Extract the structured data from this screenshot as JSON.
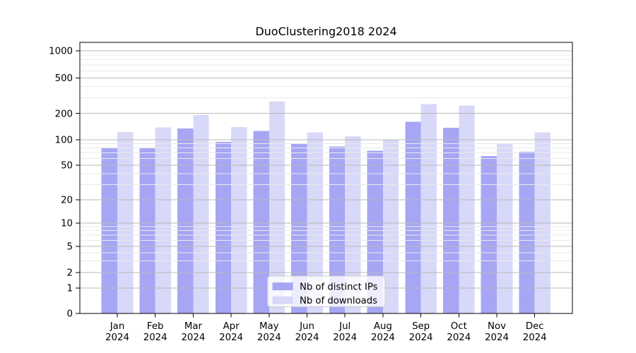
{
  "figure": {
    "background": "#ffffff"
  },
  "chart_data": {
    "type": "bar",
    "title": "DuoClustering2018 2024",
    "categories": [
      "Jan 2024",
      "Feb 2024",
      "Mar 2024",
      "Apr 2024",
      "May 2024",
      "Jun 2024",
      "Jul 2024",
      "Aug 2024",
      "Sep 2024",
      "Oct 2024",
      "Nov 2024",
      "Dec 2024"
    ],
    "x_tick_line1": [
      "Jan",
      "Feb",
      "Mar",
      "Apr",
      "May",
      "Jun",
      "Jul",
      "Aug",
      "Sep",
      "Oct",
      "Nov",
      "Dec"
    ],
    "x_tick_line2": "2024",
    "series": [
      {
        "name": "Nb of distinct IPs",
        "color": "#a6a6f4",
        "values": [
          79,
          81,
          135,
          94,
          126,
          90,
          83,
          74,
          160,
          137,
          64,
          72
        ]
      },
      {
        "name": "Nb of downloads",
        "color": "#d8d8f9",
        "values": [
          123,
          138,
          192,
          140,
          275,
          122,
          110,
          101,
          255,
          245,
          90,
          122
        ]
      }
    ],
    "yscale": "symlog",
    "y_ticks": [
      0,
      1,
      2,
      5,
      10,
      20,
      50,
      100,
      200,
      500,
      1000
    ],
    "y_minor_ticks": [
      3,
      4,
      6,
      7,
      8,
      9,
      30,
      40,
      60,
      70,
      80,
      90,
      300,
      400,
      600,
      700,
      800,
      900
    ],
    "ylim": [
      0,
      1300
    ],
    "grid": true,
    "legend": {
      "position": "lower center",
      "labels": [
        "Nb of distinct IPs",
        "Nb of downloads"
      ]
    },
    "colors": {
      "grid_major": "#b9b9b9",
      "grid_minor": "#eaeaea",
      "axis": "#000000",
      "text": "#000000",
      "legend_border": "#cccccc",
      "legend_bg": "rgba(255,255,255,0.8)"
    }
  }
}
